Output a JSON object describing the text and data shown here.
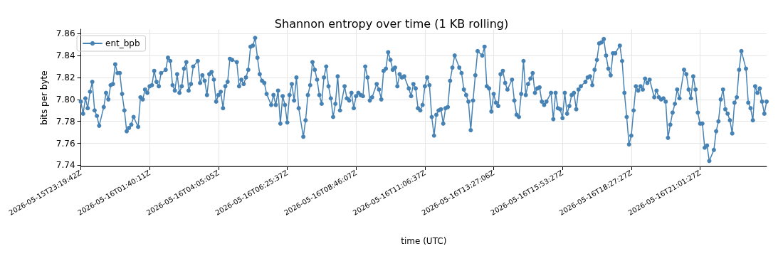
{
  "chart_data": {
    "type": "line",
    "title": "Shannon entropy over time (1 KB rolling)",
    "xlabel": "time (UTC)",
    "ylabel": "bits per byte",
    "categories": [
      "2026-05-15T23:19:42Z",
      null,
      null,
      null,
      null,
      null,
      null,
      null,
      null,
      null,
      null,
      null,
      null,
      null,
      null,
      null,
      null,
      null,
      null,
      null,
      null,
      null,
      null,
      null,
      null,
      null,
      null,
      null,
      null,
      null,
      "2026-05-16T01:40:11Z",
      null,
      null,
      null,
      null,
      null,
      null,
      null,
      null,
      null,
      null,
      null,
      null,
      null,
      null,
      null,
      null,
      null,
      null,
      null,
      null,
      null,
      null,
      null,
      null,
      null,
      null,
      null,
      null,
      null,
      "2026-05-16T04:05:05Z",
      null,
      null,
      null,
      null,
      null,
      null,
      null,
      null,
      null,
      null,
      null,
      null,
      null,
      null,
      null,
      null,
      null,
      null,
      null,
      null,
      null,
      null,
      null,
      null,
      null,
      null,
      null,
      null,
      null,
      "2026-05-16T06:25:37Z",
      null,
      null,
      null,
      null,
      null,
      null,
      null,
      null,
      null,
      null,
      null,
      null,
      null,
      null,
      null,
      null,
      null,
      null,
      null,
      null,
      null,
      null,
      null,
      null,
      null,
      null,
      null,
      null,
      null,
      "2026-05-16T08:46:07Z",
      null,
      null,
      null,
      null,
      null,
      null,
      null,
      null,
      null,
      null,
      null,
      null,
      null,
      null,
      null,
      null,
      null,
      null,
      null,
      null,
      null,
      null,
      null,
      null,
      null,
      null,
      null,
      null,
      null,
      "2026-05-16T11:06:37Z",
      null,
      null,
      null,
      null,
      null,
      null,
      null,
      null,
      null,
      null,
      null,
      null,
      null,
      null,
      null,
      null,
      null,
      null,
      null,
      null,
      null,
      null,
      null,
      null,
      null,
      null,
      null,
      null,
      null,
      "2026-05-16T13:27:06Z",
      null,
      null,
      null,
      null,
      null,
      null,
      null,
      null,
      null,
      null,
      null,
      null,
      null,
      null,
      null,
      null,
      null,
      null,
      null,
      null,
      null,
      null,
      null,
      null,
      null,
      null,
      null,
      null,
      null,
      "2026-05-16T15:53:27Z",
      null,
      null,
      null,
      null,
      null,
      null,
      null,
      null,
      null,
      null,
      null,
      null,
      null,
      null,
      null,
      null,
      null,
      null,
      null,
      null,
      null,
      null,
      null,
      null,
      null,
      null,
      null,
      null,
      null,
      "2026-05-16T18:27:27Z",
      null,
      null,
      null,
      null,
      null,
      null,
      null,
      null,
      null,
      null,
      null,
      null,
      null,
      null,
      null,
      null,
      null,
      null,
      null,
      null,
      null,
      null,
      null,
      null,
      null,
      null,
      null,
      null,
      null,
      "2026-05-16T21:01:27Z",
      null,
      null,
      null,
      null,
      null,
      null,
      null,
      null,
      null,
      null,
      null,
      null,
      null,
      null,
      null,
      null,
      null,
      null,
      null,
      null,
      null,
      null,
      null,
      null,
      null,
      null,
      null,
      null,
      null
    ],
    "ylim": [
      7.739,
      7.864
    ],
    "yticks": [
      7.74,
      7.76,
      7.78,
      {
        "value": 7.8,
        "label": "7.80"
      },
      7.82,
      7.84,
      7.86
    ],
    "grid": true,
    "legend": "top left",
    "marker": "circle",
    "line_style": "solid",
    "series": [
      {
        "name": "ent_bpb",
        "color": "#4682b4",
        "values": [
          7.798,
          7.787,
          7.801,
          7.792,
          7.807,
          7.816,
          7.79,
          7.785,
          7.776,
          null,
          7.793,
          7.806,
          7.8,
          7.813,
          7.814,
          7.832,
          7.824,
          7.824,
          7.805,
          7.79,
          7.771,
          7.774,
          7.777,
          7.784,
          null,
          7.775,
          7.802,
          7.8,
          7.809,
          7.806,
          7.812,
          7.813,
          7.826,
          7.816,
          7.812,
          7.824,
          null,
          7.827,
          7.838,
          7.835,
          7.813,
          7.808,
          7.823,
          7.806,
          7.812,
          7.828,
          7.834,
          7.808,
          7.814,
          7.83,
          null,
          7.835,
          7.815,
          7.822,
          7.817,
          7.804,
          7.823,
          7.825,
          7.818,
          7.798,
          7.804,
          7.807,
          7.792,
          7.812,
          7.816,
          7.837,
          7.836,
          null,
          7.834,
          7.812,
          7.818,
          7.814,
          7.82,
          7.827,
          7.848,
          7.849,
          7.856,
          7.838,
          7.823,
          7.817,
          7.815,
          7.805,
          null,
          7.795,
          7.804,
          7.795,
          7.808,
          7.778,
          7.803,
          7.795,
          7.779,
          7.804,
          7.814,
          7.799,
          7.82,
          7.792,
          null,
          7.766,
          7.781,
          7.804,
          7.813,
          7.834,
          7.827,
          7.818,
          7.804,
          7.796,
          7.82,
          7.83,
          7.812,
          7.801,
          7.784,
          7.796,
          7.821,
          7.79,
          null,
          7.812,
          7.801,
          7.799,
          7.806,
          7.792,
          7.803,
          7.806,
          7.804,
          7.803,
          7.83,
          7.82,
          7.799,
          7.802,
          null,
          7.814,
          7.809,
          7.8,
          7.826,
          7.828,
          7.843,
          7.836,
          7.827,
          7.829,
          7.812,
          7.823,
          7.82,
          7.821,
          null,
          7.81,
          7.803,
          7.814,
          7.81,
          7.792,
          7.79,
          7.795,
          7.812,
          7.82,
          7.813,
          7.784,
          7.767,
          7.786,
          7.79,
          7.791,
          7.778,
          7.792,
          7.793,
          7.817,
          7.829,
          7.84,
          null,
          7.829,
          7.824,
          7.809,
          7.804,
          7.798,
          7.772,
          7.799,
          7.822,
          7.844,
          null,
          7.84,
          7.848,
          7.812,
          7.81,
          7.789,
          7.805,
          7.797,
          7.794,
          7.823,
          7.826,
          7.815,
          7.809,
          null,
          7.818,
          7.799,
          7.786,
          7.784,
          7.805,
          7.835,
          7.804,
          7.814,
          7.819,
          7.824,
          7.806,
          7.81,
          7.811,
          7.798,
          7.795,
          7.798,
          null,
          7.806,
          7.782,
          7.806,
          7.792,
          7.791,
          7.783,
          7.806,
          7.787,
          7.794,
          7.804,
          7.806,
          7.791,
          7.809,
          7.812,
          null,
          7.816,
          7.82,
          7.821,
          7.813,
          7.827,
          7.836,
          7.851,
          7.852,
          7.855,
          7.84,
          7.828,
          7.822,
          7.842,
          7.842,
          null,
          7.849,
          7.835,
          7.806,
          7.784,
          7.759,
          7.767,
          7.79,
          7.812,
          7.808,
          7.812,
          7.809,
          7.819,
          7.815,
          7.818,
          null,
          7.802,
          7.808,
          7.802,
          7.8,
          7.801,
          7.798,
          7.765,
          7.777,
          7.788,
          7.796,
          7.809,
          7.801,
          null,
          7.827,
          7.823,
          7.809,
          7.801,
          7.821,
          7.809,
          7.788,
          7.778,
          7.778,
          7.756,
          7.758,
          7.744,
          null,
          7.754,
          7.771,
          7.78,
          7.8,
          7.809,
          7.791,
          7.787,
          7.781,
          7.769,
          7.797,
          7.802,
          7.827,
          7.844,
          null,
          7.828,
          7.797,
          7.792,
          7.781,
          7.812,
          7.806,
          7.81,
          7.798,
          7.787,
          7.798
        ]
      }
    ]
  }
}
